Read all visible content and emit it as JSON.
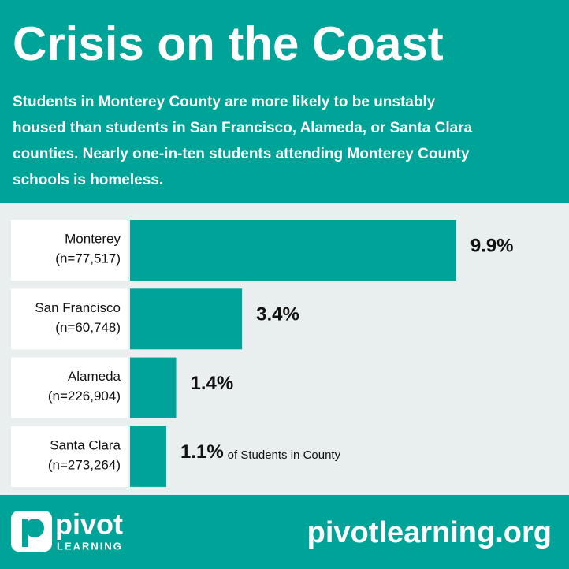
{
  "chart_data": {
    "type": "bar",
    "title": "Crisis on the Coast",
    "subtitle_lines": [
      "Students in Monterey County are more likely to be unstably",
      "housed than students in San Francisco, Alameda, or Santa Clara",
      "counties. Nearly one-in-ten students attending Monterey County",
      "schools is homeless."
    ],
    "categories": [
      "Monterey",
      "San Francisco",
      "Alameda",
      "Santa Clara"
    ],
    "category_notes": [
      "(n=77,517)",
      "(n=60,748)",
      "(n=226,904)",
      "(n=273,264)"
    ],
    "values": [
      9.9,
      3.4,
      1.4,
      1.1
    ],
    "value_labels": [
      "9.9%",
      "3.4%",
      "1.4%",
      "1.1%"
    ],
    "annotation": "of Students in County",
    "color": "#00a398",
    "logo": {
      "name": "pivot",
      "tagline": "LEARNING"
    },
    "website": "pivotlearning.org"
  }
}
